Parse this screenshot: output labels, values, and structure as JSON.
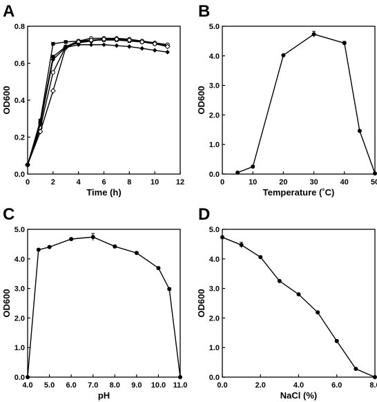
{
  "chart_data": [
    {
      "panel": "A",
      "type": "line",
      "xlabel": "Time (h)",
      "ylabel": "OD600",
      "xlim": [
        0,
        12
      ],
      "ylim": [
        0,
        0.8
      ],
      "xticks": [
        0,
        2,
        4,
        6,
        8,
        10,
        12
      ],
      "xtick_labels": [
        "0",
        "2",
        "4",
        "6",
        "8",
        "10",
        "12"
      ],
      "yticks": [
        0,
        0.2,
        0.4,
        0.6,
        0.8
      ],
      "ytick_labels": [
        "0.0",
        "0.2",
        "0.4",
        "0.6",
        "0.8"
      ],
      "legend": "none",
      "grid": false,
      "x": [
        0,
        1,
        2,
        3,
        4,
        5,
        6,
        7,
        8,
        9,
        10,
        11
      ],
      "series": [
        {
          "marker": "filled-square",
          "values": [
            0.05,
            0.29,
            0.705,
            0.715,
            0.72,
            0.725,
            0.725,
            0.725,
            0.72,
            0.715,
            0.705,
            0.695
          ]
        },
        {
          "marker": "filled-circle",
          "values": [
            0.05,
            0.28,
            0.635,
            0.69,
            0.71,
            0.72,
            0.73,
            0.73,
            0.725,
            0.72,
            0.71,
            0.7
          ]
        },
        {
          "marker": "open-circle",
          "values": [
            0.05,
            0.25,
            0.55,
            0.69,
            0.72,
            0.735,
            0.735,
            0.735,
            0.73,
            0.72,
            0.71,
            0.7
          ]
        },
        {
          "marker": "open-diamond",
          "values": [
            0.05,
            0.23,
            0.45,
            0.685,
            0.715,
            0.725,
            0.73,
            0.73,
            0.725,
            0.715,
            0.705,
            0.69
          ]
        },
        {
          "marker": "filled-diamond",
          "values": [
            0.05,
            0.27,
            0.62,
            0.685,
            0.7,
            0.7,
            0.7,
            0.695,
            0.69,
            0.68,
            0.67,
            0.66
          ]
        }
      ]
    },
    {
      "panel": "B",
      "type": "line",
      "xlabel": "Temperature (˚C)",
      "ylabel": "OD600",
      "xlim": [
        0,
        50
      ],
      "ylim": [
        0,
        5
      ],
      "xticks": [
        0,
        10,
        20,
        30,
        40,
        50
      ],
      "xtick_labels": [
        "0",
        "10",
        "20",
        "30",
        "40",
        "50"
      ],
      "yticks": [
        0,
        1,
        2,
        3,
        4,
        5
      ],
      "ytick_labels": [
        "0.0",
        "1.0",
        "2.0",
        "3.0",
        "4.0",
        "5.0"
      ],
      "legend": "none",
      "grid": false,
      "x": [
        5,
        10,
        20,
        30,
        40,
        45,
        50
      ],
      "series": [
        {
          "marker": "filled-circle",
          "values": [
            0.05,
            0.25,
            4.02,
            4.73,
            4.43,
            1.46,
            0.02
          ],
          "errors": [
            0,
            0.02,
            0.03,
            0.1,
            0.06,
            0.03,
            0
          ]
        }
      ]
    },
    {
      "panel": "C",
      "type": "line",
      "xlabel": "pH",
      "ylabel": "OD600",
      "xlim": [
        4,
        11
      ],
      "ylim": [
        0,
        5
      ],
      "xticks": [
        4,
        5,
        6,
        7,
        8,
        9,
        10,
        11
      ],
      "xtick_labels": [
        "4.0",
        "5.0",
        "6.0",
        "7.0",
        "8.0",
        "9.0",
        "10.0",
        "11.0"
      ],
      "yticks": [
        0,
        1,
        2,
        3,
        4,
        5
      ],
      "ytick_labels": [
        "0.0",
        "1.0",
        "2.0",
        "3.0",
        "4.0",
        "5.0"
      ],
      "legend": "none",
      "grid": false,
      "x": [
        4.0,
        4.5,
        5.0,
        6.0,
        7.0,
        8.0,
        9.0,
        10.0,
        10.5,
        11.0
      ],
      "series": [
        {
          "marker": "filled-circle",
          "values": [
            0.0,
            4.31,
            4.4,
            4.67,
            4.74,
            4.42,
            4.2,
            3.69,
            2.98,
            0.0
          ],
          "errors": [
            0,
            0.03,
            0.04,
            0.04,
            0.12,
            0.04,
            0.04,
            0.04,
            0.04,
            0
          ]
        }
      ]
    },
    {
      "panel": "D",
      "type": "line",
      "xlabel": "NaCl (%)",
      "ylabel": "OD600",
      "xlim": [
        0,
        8
      ],
      "ylim": [
        0,
        5
      ],
      "xticks": [
        0,
        2,
        4,
        6,
        8
      ],
      "xtick_labels": [
        "0.0",
        "2.0",
        "4.0",
        "6.0",
        "8.0"
      ],
      "yticks": [
        0,
        1,
        2,
        3,
        4,
        5
      ],
      "ytick_labels": [
        "0.0",
        "1.0",
        "2.0",
        "3.0",
        "4.0",
        "5.0"
      ],
      "legend": "none",
      "grid": false,
      "x": [
        0,
        1,
        2,
        3,
        4,
        5,
        6,
        7,
        8
      ],
      "series": [
        {
          "marker": "filled-circle",
          "values": [
            4.73,
            4.47,
            4.06,
            3.25,
            2.8,
            2.19,
            1.22,
            0.28,
            0.0
          ],
          "errors": [
            0.04,
            0.09,
            0.03,
            0.03,
            0.03,
            0.04,
            0.05,
            0.02,
            0
          ]
        }
      ]
    }
  ]
}
